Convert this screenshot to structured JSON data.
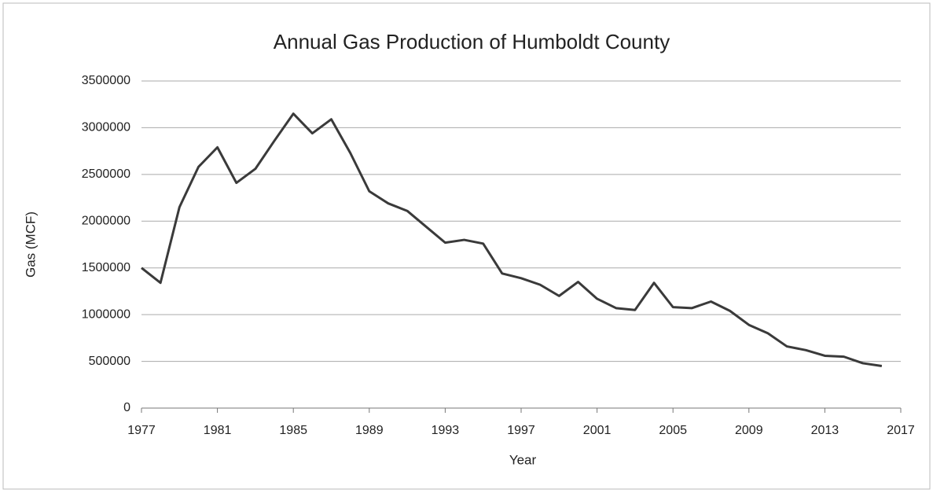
{
  "chart_data": {
    "type": "line",
    "title": "Annual Gas Production of Humboldt County",
    "x_label": "Year",
    "y_label": "Gas (MCF)",
    "x": [
      1977,
      1978,
      1979,
      1980,
      1981,
      1982,
      1983,
      1984,
      1985,
      1986,
      1987,
      1988,
      1989,
      1990,
      1991,
      1992,
      1993,
      1994,
      1995,
      1996,
      1997,
      1998,
      1999,
      2000,
      2001,
      2002,
      2003,
      2004,
      2005,
      2006,
      2007,
      2008,
      2009,
      2010,
      2011,
      2012,
      2013,
      2014,
      2015,
      2016
    ],
    "values": [
      1500000,
      1340000,
      2150000,
      2580000,
      2790000,
      2410000,
      2560000,
      2860000,
      3150000,
      2940000,
      3090000,
      2730000,
      2320000,
      2190000,
      2110000,
      1940000,
      1770000,
      1800000,
      1760000,
      1440000,
      1390000,
      1320000,
      1200000,
      1350000,
      1170000,
      1070000,
      1050000,
      1340000,
      1080000,
      1070000,
      1140000,
      1040000,
      890000,
      800000,
      660000,
      620000,
      560000,
      550000,
      480000,
      450000
    ],
    "color": "#3a3a3a",
    "xlim": [
      1977,
      2017
    ],
    "xticks": [
      1977,
      1981,
      1985,
      1989,
      1993,
      1997,
      2001,
      2005,
      2009,
      2013,
      2017
    ],
    "ylim": [
      0,
      3500000
    ],
    "yticks": [
      0,
      500000,
      1000000,
      1500000,
      2000000,
      2500000,
      3000000,
      3500000
    ],
    "grid": true
  }
}
